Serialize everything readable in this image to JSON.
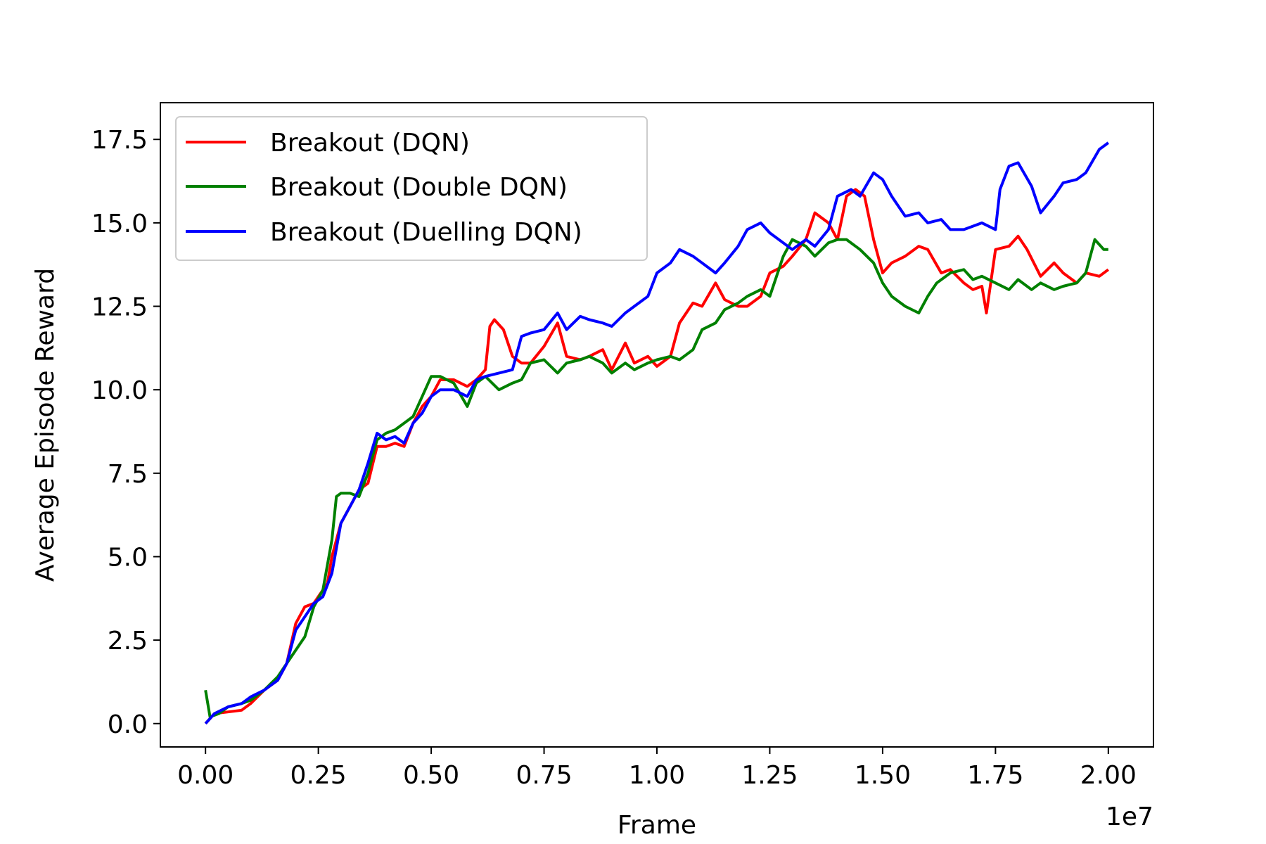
{
  "chart_data": {
    "type": "line",
    "title": "",
    "xlabel": "Frame",
    "ylabel": "Average Episode Reward",
    "x_offset_label": "1e7",
    "xlim": [
      -0.1,
      2.1
    ],
    "ylim": [
      -0.7,
      18.6
    ],
    "x_ticks": [
      0.0,
      0.25,
      0.5,
      0.75,
      1.0,
      1.25,
      1.5,
      1.75,
      2.0
    ],
    "x_tick_labels": [
      "0.00",
      "0.25",
      "0.50",
      "0.75",
      "1.00",
      "1.25",
      "1.50",
      "1.75",
      "2.00"
    ],
    "y_ticks": [
      0.0,
      2.5,
      5.0,
      7.5,
      10.0,
      12.5,
      15.0,
      17.5
    ],
    "y_tick_labels": [
      "0.0",
      "2.5",
      "5.0",
      "7.5",
      "10.0",
      "12.5",
      "15.0",
      "17.5"
    ],
    "grid": false,
    "legend_position": "top-left",
    "series": [
      {
        "name": "Breakout (DQN)",
        "color": "#ff0000",
        "x": [
          0,
          0.02,
          0.05,
          0.08,
          0.1,
          0.13,
          0.16,
          0.18,
          0.2,
          0.22,
          0.24,
          0.25,
          0.27,
          0.28,
          0.3,
          0.32,
          0.34,
          0.36,
          0.38,
          0.4,
          0.42,
          0.44,
          0.46,
          0.48,
          0.5,
          0.52,
          0.55,
          0.58,
          0.6,
          0.62,
          0.63,
          0.64,
          0.66,
          0.68,
          0.7,
          0.72,
          0.75,
          0.78,
          0.8,
          0.83,
          0.85,
          0.88,
          0.9,
          0.93,
          0.95,
          0.98,
          1.0,
          1.03,
          1.05,
          1.08,
          1.1,
          1.13,
          1.15,
          1.18,
          1.2,
          1.23,
          1.25,
          1.28,
          1.3,
          1.33,
          1.35,
          1.38,
          1.4,
          1.42,
          1.44,
          1.46,
          1.48,
          1.5,
          1.52,
          1.55,
          1.58,
          1.6,
          1.63,
          1.65,
          1.68,
          1.7,
          1.72,
          1.73,
          1.75,
          1.78,
          1.8,
          1.82,
          1.85,
          1.88,
          1.9,
          1.93,
          1.95,
          1.98,
          2.0
        ],
        "y": [
          0.0,
          0.3,
          0.35,
          0.4,
          0.6,
          1.0,
          1.3,
          1.8,
          3.0,
          3.5,
          3.6,
          3.8,
          4.2,
          5.0,
          6.0,
          6.5,
          7.0,
          7.2,
          8.3,
          8.3,
          8.4,
          8.3,
          9.0,
          9.5,
          9.8,
          10.3,
          10.3,
          10.1,
          10.3,
          10.6,
          11.9,
          12.1,
          11.8,
          11.0,
          10.8,
          10.8,
          11.3,
          12.0,
          11.0,
          10.9,
          11.0,
          11.2,
          10.6,
          11.4,
          10.8,
          11.0,
          10.7,
          11.0,
          12.0,
          12.6,
          12.5,
          13.2,
          12.7,
          12.5,
          12.5,
          12.8,
          13.5,
          13.7,
          14.0,
          14.5,
          15.3,
          15.0,
          14.5,
          15.8,
          16.0,
          15.8,
          14.5,
          13.5,
          13.8,
          14.0,
          14.3,
          14.2,
          13.5,
          13.6,
          13.2,
          13.0,
          13.1,
          12.3,
          14.2,
          14.3,
          14.6,
          14.2,
          13.4,
          13.8,
          13.5,
          13.2,
          13.5,
          13.4,
          13.6
        ]
      },
      {
        "name": "Breakout (Double DQN)",
        "color": "#008000",
        "x": [
          0,
          0.01,
          0.03,
          0.05,
          0.08,
          0.1,
          0.13,
          0.16,
          0.18,
          0.2,
          0.22,
          0.24,
          0.26,
          0.28,
          0.29,
          0.3,
          0.32,
          0.34,
          0.36,
          0.38,
          0.4,
          0.42,
          0.44,
          0.46,
          0.48,
          0.5,
          0.52,
          0.55,
          0.58,
          0.6,
          0.62,
          0.65,
          0.68,
          0.7,
          0.72,
          0.75,
          0.78,
          0.8,
          0.83,
          0.85,
          0.88,
          0.9,
          0.93,
          0.95,
          0.98,
          1.0,
          1.03,
          1.05,
          1.08,
          1.1,
          1.13,
          1.15,
          1.18,
          1.2,
          1.23,
          1.25,
          1.28,
          1.3,
          1.33,
          1.35,
          1.38,
          1.4,
          1.42,
          1.45,
          1.48,
          1.5,
          1.52,
          1.55,
          1.58,
          1.6,
          1.62,
          1.65,
          1.68,
          1.7,
          1.72,
          1.75,
          1.78,
          1.8,
          1.83,
          1.85,
          1.88,
          1.9,
          1.93,
          1.95,
          1.97,
          1.99,
          2.0
        ],
        "y": [
          1.0,
          0.2,
          0.3,
          0.5,
          0.6,
          0.7,
          1.0,
          1.4,
          1.8,
          2.2,
          2.6,
          3.5,
          4.0,
          5.5,
          6.8,
          6.9,
          6.9,
          6.8,
          7.5,
          8.5,
          8.7,
          8.8,
          9.0,
          9.2,
          9.8,
          10.4,
          10.4,
          10.2,
          9.5,
          10.2,
          10.4,
          10.0,
          10.2,
          10.3,
          10.8,
          10.9,
          10.5,
          10.8,
          10.9,
          11.0,
          10.8,
          10.5,
          10.8,
          10.6,
          10.8,
          10.9,
          11.0,
          10.9,
          11.2,
          11.8,
          12.0,
          12.4,
          12.6,
          12.8,
          13.0,
          12.8,
          14.0,
          14.5,
          14.3,
          14.0,
          14.4,
          14.5,
          14.5,
          14.2,
          13.8,
          13.2,
          12.8,
          12.5,
          12.3,
          12.8,
          13.2,
          13.5,
          13.6,
          13.3,
          13.4,
          13.2,
          13.0,
          13.3,
          13.0,
          13.2,
          13.0,
          13.1,
          13.2,
          13.5,
          14.5,
          14.2,
          14.2
        ]
      },
      {
        "name": "Breakout (Duelling DQN)",
        "color": "#0000ff",
        "x": [
          0,
          0.02,
          0.05,
          0.08,
          0.1,
          0.13,
          0.16,
          0.18,
          0.2,
          0.22,
          0.24,
          0.26,
          0.28,
          0.3,
          0.32,
          0.34,
          0.36,
          0.38,
          0.4,
          0.42,
          0.44,
          0.46,
          0.48,
          0.5,
          0.52,
          0.55,
          0.58,
          0.6,
          0.62,
          0.65,
          0.68,
          0.7,
          0.72,
          0.75,
          0.78,
          0.8,
          0.83,
          0.85,
          0.88,
          0.9,
          0.93,
          0.95,
          0.98,
          1.0,
          1.03,
          1.05,
          1.08,
          1.1,
          1.13,
          1.15,
          1.18,
          1.2,
          1.23,
          1.25,
          1.28,
          1.3,
          1.33,
          1.35,
          1.38,
          1.4,
          1.43,
          1.45,
          1.48,
          1.5,
          1.52,
          1.55,
          1.58,
          1.6,
          1.63,
          1.65,
          1.68,
          1.7,
          1.72,
          1.75,
          1.76,
          1.78,
          1.8,
          1.83,
          1.85,
          1.88,
          1.9,
          1.93,
          1.95,
          1.98,
          2.0
        ],
        "y": [
          0.0,
          0.3,
          0.5,
          0.6,
          0.8,
          1.0,
          1.3,
          1.8,
          2.8,
          3.2,
          3.6,
          3.8,
          4.5,
          6.0,
          6.5,
          7.0,
          7.8,
          8.7,
          8.5,
          8.6,
          8.4,
          9.0,
          9.3,
          9.8,
          10.0,
          10.0,
          9.8,
          10.3,
          10.4,
          10.5,
          10.6,
          11.6,
          11.7,
          11.8,
          12.3,
          11.8,
          12.2,
          12.1,
          12.0,
          11.9,
          12.3,
          12.5,
          12.8,
          13.5,
          13.8,
          14.2,
          14.0,
          13.8,
          13.5,
          13.8,
          14.3,
          14.8,
          15.0,
          14.7,
          14.4,
          14.2,
          14.5,
          14.3,
          14.8,
          15.8,
          16.0,
          15.8,
          16.5,
          16.3,
          15.8,
          15.2,
          15.3,
          15.0,
          15.1,
          14.8,
          14.8,
          14.9,
          15.0,
          14.8,
          16.0,
          16.7,
          16.8,
          16.1,
          15.3,
          15.8,
          16.2,
          16.3,
          16.5,
          17.2,
          17.4
        ]
      }
    ]
  }
}
